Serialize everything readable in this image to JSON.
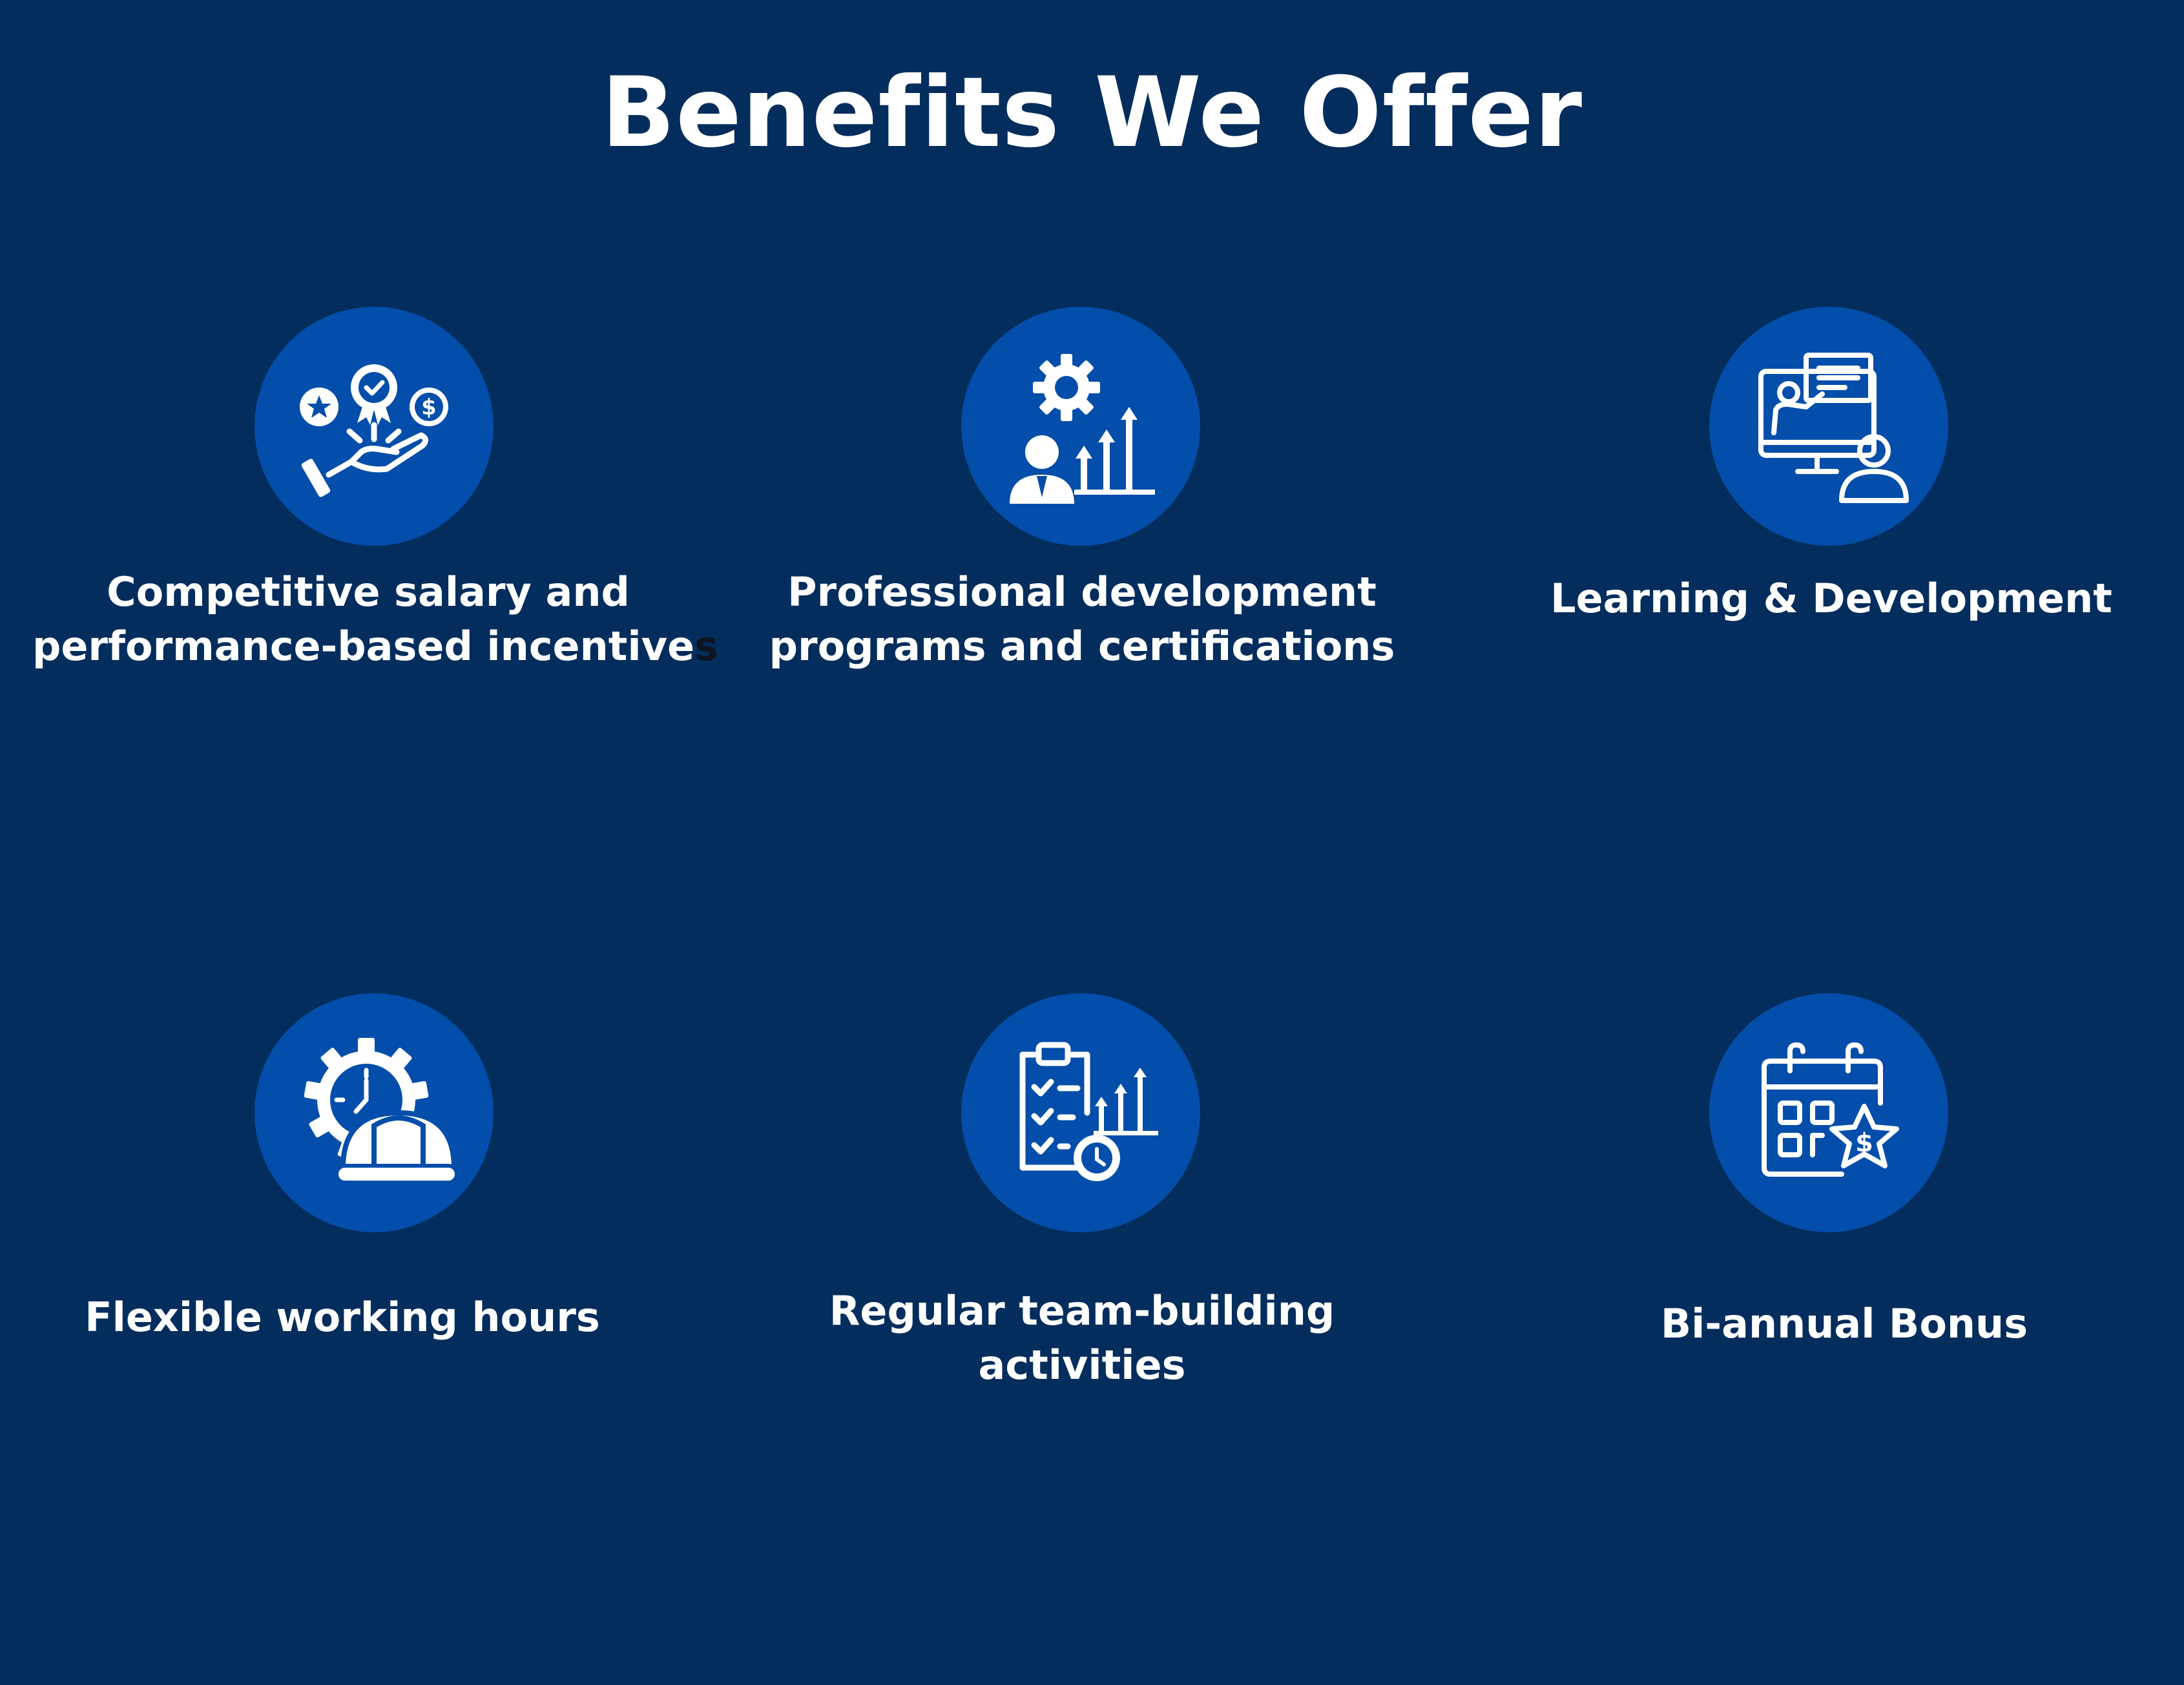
{
  "header": {
    "title": "Benefits We Offer"
  },
  "colors": {
    "background": "#032d5c",
    "icon_circle": "#034eaa",
    "text": "#ffffff"
  },
  "benefits": [
    {
      "icon": "hand-rewards-icon",
      "line1": "Competitive salary and",
      "line2_main": "performance-based incentive",
      "line2_tail": "s"
    },
    {
      "icon": "professional-growth-icon",
      "line1": "Professional development",
      "line2": "programs and certifications"
    },
    {
      "icon": "online-training-icon",
      "line1": "Learning & Development"
    },
    {
      "icon": "gear-clock-worker-icon",
      "line1": "Flexible working hours"
    },
    {
      "icon": "checklist-clock-chart-icon",
      "line1": "Regular team-building",
      "line2": "activities"
    },
    {
      "icon": "calendar-bonus-star-icon",
      "line1": "Bi-annual Bonus"
    }
  ]
}
